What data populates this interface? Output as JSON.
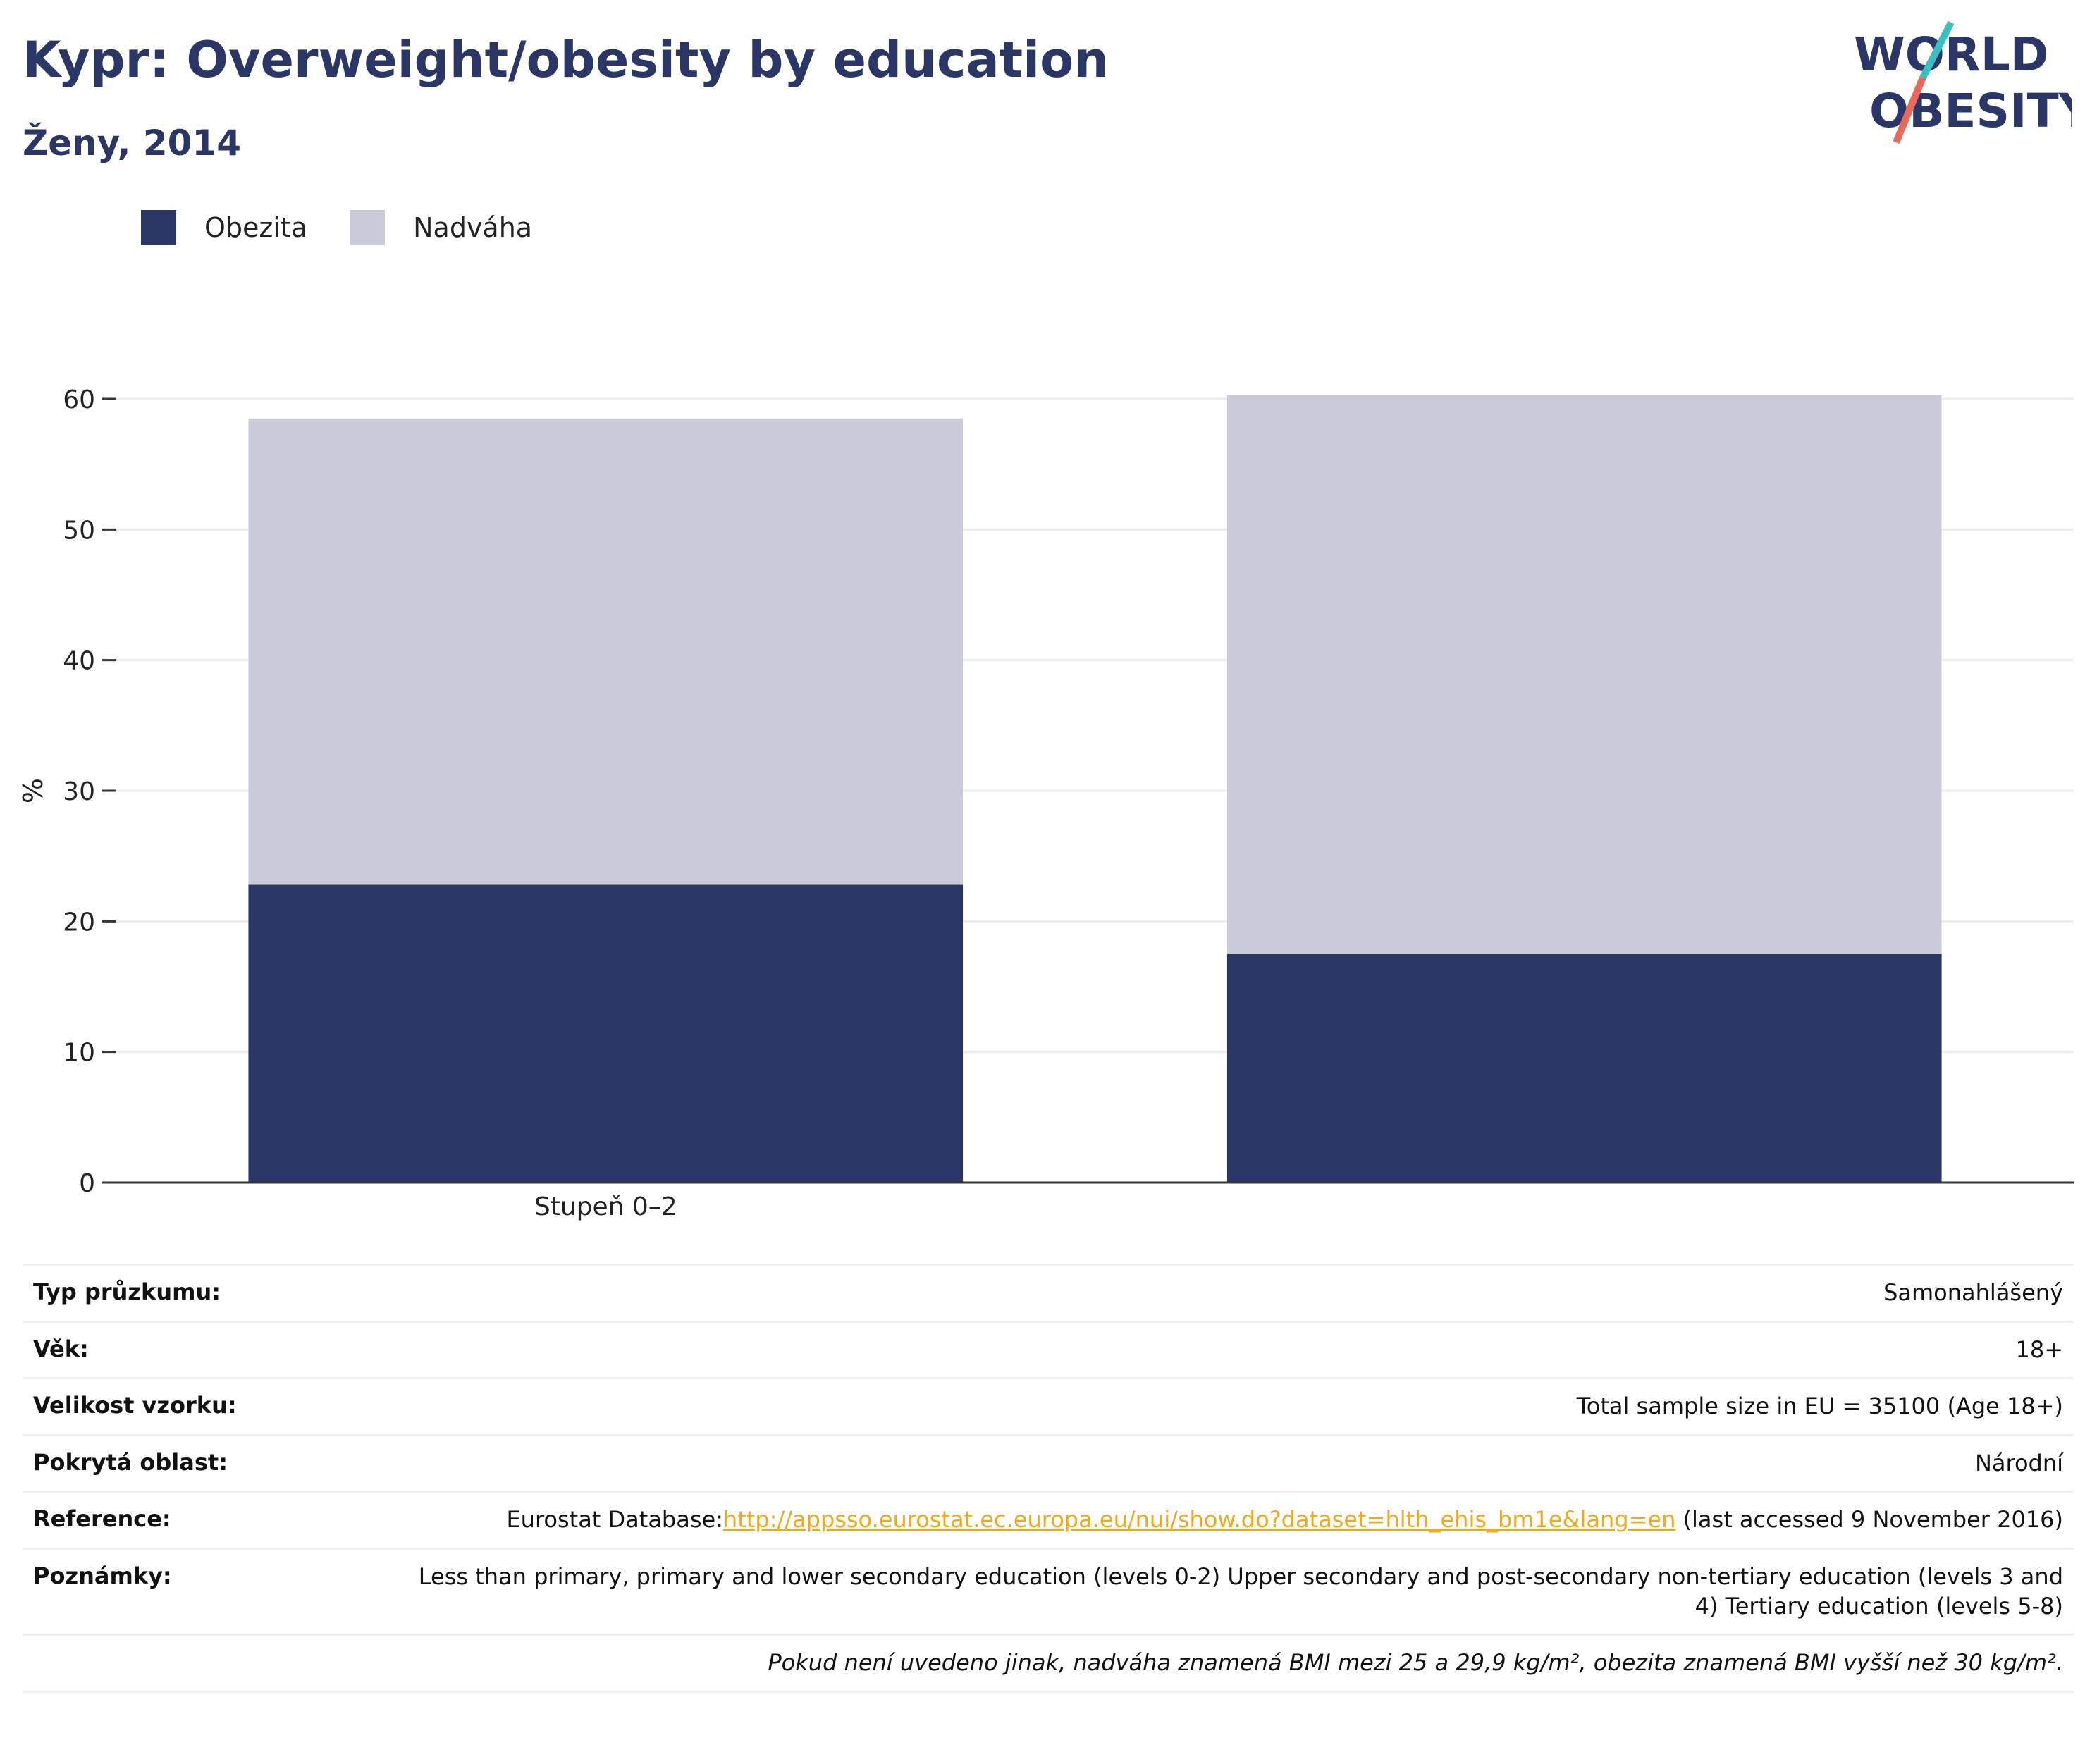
{
  "header": {
    "title": "Kypr: Overweight/obesity by education",
    "subtitle": "Ženy, 2014",
    "logo_line1": "WORLD",
    "logo_line2": "OBESITY"
  },
  "legend": [
    {
      "label": "Obezita",
      "color": "#2a3766"
    },
    {
      "label": "Nadváha",
      "color": "#c9ccd8"
    }
  ],
  "chart_data": {
    "type": "bar",
    "stacked": true,
    "categories": [
      "Stupeň 0–2",
      ""
    ],
    "series": [
      {
        "name": "Obezita",
        "color": "#2a3766",
        "values": [
          22.8,
          17.5
        ]
      },
      {
        "name": "Nadváha",
        "color": "#c9ccd8",
        "values": [
          35.7,
          42.8
        ]
      }
    ],
    "ylabel": "%",
    "ylim": [
      0,
      60
    ],
    "yticks": [
      0,
      10,
      20,
      30,
      40,
      50,
      60
    ],
    "grid": true,
    "legend_position": "top-left"
  },
  "info": {
    "survey_type_label": "Typ průzkumu:",
    "survey_type": "Samonahlášený",
    "age_label": "Věk:",
    "age": "18+",
    "sample_label": "Velikost vzorku:",
    "sample": "Total sample size in EU = 35100 (Age 18+)",
    "area_label": "Pokrytá oblast:",
    "area": "Národní",
    "reference_label": "Reference:",
    "reference_prefix": "Eurostat Database:",
    "reference_link": "http://appsso.eurostat.ec.europa.eu/nui/show.do?dataset=hlth_ehis_bm1e&lang=en",
    "reference_suffix": " (last accessed 9 November 2016)",
    "notes_label": "Poznámky:",
    "notes": "Less than primary, primary and lower secondary education (levels 0-2) Upper secondary and post-secondary non-tertiary education (levels 3 and 4) Tertiary education (levels 5-8)",
    "footnote": "Pokud není uvedeno jinak, nadváha znamená BMI mezi 25 a 29,9 kg/m², obezita znamená BMI vyšší než 30 kg/m²."
  }
}
